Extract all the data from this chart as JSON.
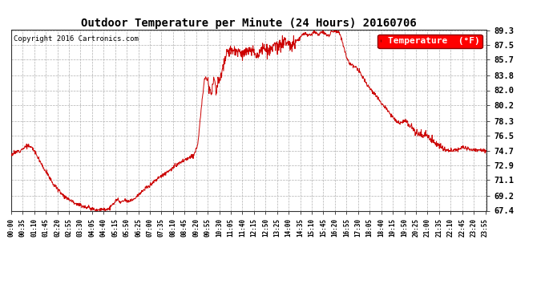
{
  "title": "Outdoor Temperature per Minute (24 Hours) 20160706",
  "copyright_text": "Copyright 2016 Cartronics.com",
  "legend_label": "Temperature  (°F)",
  "line_color": "#cc0000",
  "background_color": "#ffffff",
  "plot_bg_color": "#ffffff",
  "grid_color": "#b0b0b0",
  "ytick_labels": [
    "67.4",
    "69.2",
    "71.1",
    "72.9",
    "74.7",
    "76.5",
    "78.3",
    "80.2",
    "82.0",
    "83.8",
    "85.7",
    "87.5",
    "89.3"
  ],
  "ytick_values": [
    67.4,
    69.2,
    71.1,
    72.9,
    74.7,
    76.5,
    78.3,
    80.2,
    82.0,
    83.8,
    85.7,
    87.5,
    89.3
  ],
  "ylim": [
    67.4,
    89.3
  ],
  "xtick_labels": [
    "00:00",
    "00:35",
    "01:10",
    "01:45",
    "02:20",
    "02:55",
    "03:30",
    "04:05",
    "04:40",
    "05:15",
    "05:50",
    "06:25",
    "07:00",
    "07:35",
    "08:10",
    "08:45",
    "09:20",
    "09:55",
    "10:30",
    "11:05",
    "11:40",
    "12:15",
    "12:50",
    "13:25",
    "14:00",
    "14:35",
    "15:10",
    "15:45",
    "16:20",
    "16:55",
    "17:30",
    "18:05",
    "18:40",
    "19:15",
    "19:50",
    "20:25",
    "21:00",
    "21:35",
    "22:10",
    "22:45",
    "23:20",
    "23:55"
  ],
  "num_points": 1440,
  "figwidth": 6.9,
  "figheight": 3.75,
  "dpi": 100
}
